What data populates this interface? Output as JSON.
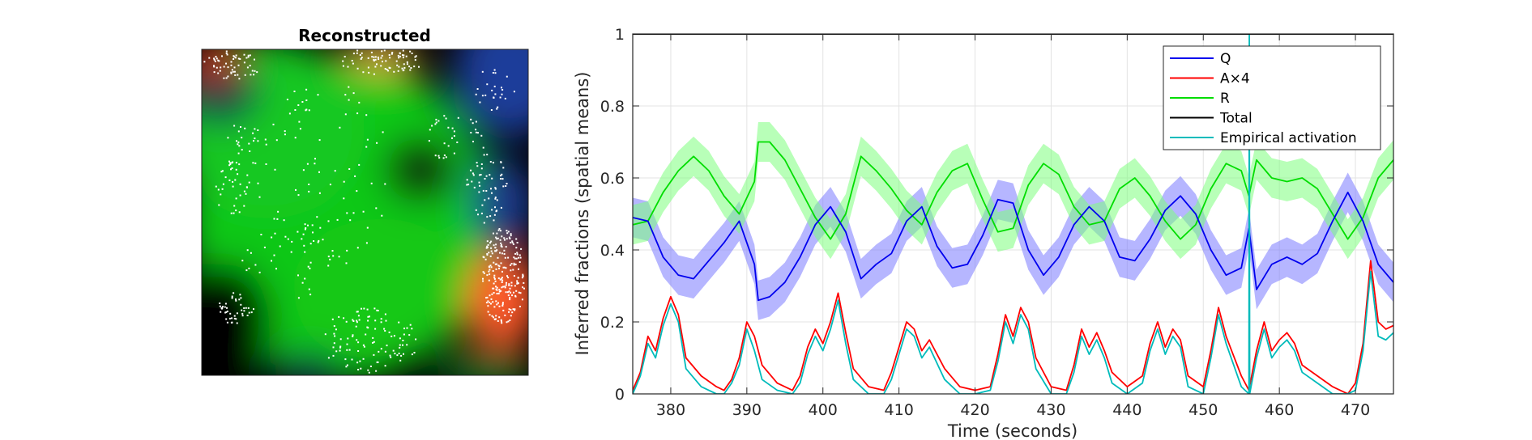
{
  "chart_data": [
    {
      "type": "heatmap",
      "title": "Reconstructed",
      "description_colors": {
        "Q": "#1e3cff",
        "A": "#ff3020",
        "R": "#00e020"
      },
      "spike_color": "#ffffff",
      "background": "#000000"
    },
    {
      "type": "line",
      "title": "",
      "xlabel": "Time (seconds)",
      "ylabel": "Inferred fractions (spatial means)",
      "xlim": [
        375,
        475
      ],
      "ylim": [
        0,
        1
      ],
      "xticks": [
        380,
        390,
        400,
        410,
        420,
        430,
        440,
        450,
        460,
        470
      ],
      "yticks": [
        0,
        0.2,
        0.4,
        0.6,
        0.8,
        1
      ],
      "grid": true,
      "legend_position": "top-right",
      "series": [
        {
          "name": "Q",
          "color": "#0000ee",
          "band_color": "#7a7aff",
          "x": [
            375,
            377,
            379,
            381,
            383,
            385,
            387,
            389,
            391,
            391.5,
            393,
            395,
            397,
            399,
            401,
            403,
            405,
            407,
            409,
            411,
            413,
            415,
            417,
            419,
            421,
            423,
            425,
            427,
            429,
            431,
            433,
            435,
            437,
            439,
            441,
            443,
            445,
            447,
            449,
            451,
            453,
            455,
            456,
            457,
            459,
            461,
            463,
            465,
            467,
            469,
            471,
            473,
            475
          ],
          "values": [
            0.49,
            0.48,
            0.38,
            0.33,
            0.32,
            0.37,
            0.42,
            0.48,
            0.36,
            0.26,
            0.27,
            0.31,
            0.38,
            0.47,
            0.52,
            0.45,
            0.32,
            0.36,
            0.39,
            0.48,
            0.52,
            0.41,
            0.35,
            0.36,
            0.44,
            0.54,
            0.53,
            0.4,
            0.33,
            0.38,
            0.47,
            0.52,
            0.48,
            0.38,
            0.37,
            0.43,
            0.51,
            0.55,
            0.5,
            0.4,
            0.33,
            0.35,
            0.46,
            0.29,
            0.36,
            0.38,
            0.36,
            0.39,
            0.48,
            0.56,
            0.48,
            0.36,
            0.31
          ]
        },
        {
          "name": "A×4",
          "color": "#ff0000",
          "x": [
            375,
            376,
            377,
            378,
            379,
            380,
            381,
            382,
            384,
            386,
            387,
            388,
            389,
            390,
            391,
            392,
            394,
            396,
            397,
            398,
            399,
            400,
            401,
            402,
            403,
            404,
            406,
            408,
            409,
            410,
            411,
            412,
            413,
            414,
            416,
            418,
            420,
            422,
            423,
            424,
            425,
            426,
            427,
            428,
            430,
            432,
            433,
            434,
            435,
            436,
            437,
            438,
            440,
            442,
            443,
            444,
            445,
            446,
            447,
            448,
            450,
            451,
            452,
            453,
            455,
            456,
            457,
            458,
            459,
            460,
            461,
            462,
            463,
            465,
            467,
            468,
            469,
            470,
            471,
            472,
            473,
            474,
            475
          ],
          "values": [
            0.01,
            0.06,
            0.16,
            0.12,
            0.21,
            0.27,
            0.22,
            0.1,
            0.05,
            0.02,
            0.01,
            0.04,
            0.1,
            0.2,
            0.16,
            0.08,
            0.03,
            0.01,
            0.05,
            0.13,
            0.18,
            0.14,
            0.2,
            0.28,
            0.17,
            0.07,
            0.02,
            0.01,
            0.06,
            0.13,
            0.2,
            0.18,
            0.12,
            0.15,
            0.07,
            0.02,
            0.01,
            0.02,
            0.11,
            0.22,
            0.16,
            0.24,
            0.2,
            0.1,
            0.02,
            0.01,
            0.08,
            0.18,
            0.13,
            0.17,
            0.12,
            0.06,
            0.02,
            0.05,
            0.14,
            0.2,
            0.13,
            0.18,
            0.15,
            0.05,
            0.02,
            0.12,
            0.24,
            0.16,
            0.05,
            0.01,
            0.12,
            0.2,
            0.12,
            0.15,
            0.17,
            0.14,
            0.08,
            0.05,
            0.02,
            0.01,
            0.0,
            0.03,
            0.14,
            0.37,
            0.2,
            0.18,
            0.19
          ]
        },
        {
          "name": "R",
          "color": "#00dd00",
          "band_color": "#7dff7d",
          "x": [
            375,
            377,
            379,
            381,
            383,
            385,
            387,
            389,
            391,
            391.5,
            393,
            395,
            397,
            399,
            401,
            403,
            405,
            407,
            409,
            411,
            413,
            415,
            417,
            419,
            421,
            423,
            425,
            427,
            429,
            431,
            433,
            435,
            437,
            439,
            441,
            443,
            445,
            447,
            449,
            451,
            453,
            455,
            456,
            457,
            459,
            461,
            463,
            465,
            467,
            469,
            471,
            473,
            475
          ],
          "values": [
            0.47,
            0.48,
            0.56,
            0.62,
            0.66,
            0.62,
            0.55,
            0.5,
            0.59,
            0.7,
            0.7,
            0.65,
            0.57,
            0.49,
            0.43,
            0.5,
            0.66,
            0.62,
            0.57,
            0.51,
            0.47,
            0.56,
            0.62,
            0.64,
            0.54,
            0.45,
            0.46,
            0.58,
            0.64,
            0.61,
            0.52,
            0.47,
            0.48,
            0.57,
            0.6,
            0.55,
            0.48,
            0.43,
            0.47,
            0.57,
            0.64,
            0.62,
            0.55,
            0.65,
            0.6,
            0.59,
            0.6,
            0.57,
            0.5,
            0.43,
            0.49,
            0.6,
            0.65
          ]
        },
        {
          "name": "Total",
          "color": "#000000",
          "x": [
            375,
            475
          ],
          "values": [
            1,
            1
          ]
        },
        {
          "name": "Empirical activation",
          "color": "#00bbbb",
          "x": [
            375,
            376,
            377,
            378,
            379,
            380,
            381,
            382,
            384,
            386,
            387,
            388,
            389,
            390,
            391,
            392,
            394,
            396,
            397,
            398,
            399,
            400,
            401,
            402,
            403,
            404,
            406,
            408,
            409,
            410,
            411,
            412,
            413,
            414,
            416,
            418,
            420,
            422,
            423,
            424,
            425,
            426,
            427,
            428,
            430,
            432,
            433,
            434,
            435,
            436,
            437,
            438,
            440,
            442,
            443,
            444,
            445,
            446,
            447,
            448,
            450,
            451,
            452,
            453,
            455,
            456,
            456.05,
            456.1,
            457,
            458,
            459,
            460,
            461,
            462,
            463,
            465,
            467,
            468,
            469,
            470,
            471,
            472,
            473,
            474,
            475
          ],
          "values": [
            0.0,
            0.05,
            0.14,
            0.1,
            0.19,
            0.25,
            0.2,
            0.07,
            0.02,
            0.0,
            0.0,
            0.03,
            0.08,
            0.18,
            0.12,
            0.04,
            0.01,
            0.0,
            0.03,
            0.11,
            0.16,
            0.12,
            0.18,
            0.26,
            0.14,
            0.04,
            0.0,
            0.0,
            0.04,
            0.11,
            0.18,
            0.16,
            0.1,
            0.13,
            0.04,
            0.0,
            0.0,
            0.01,
            0.09,
            0.2,
            0.14,
            0.22,
            0.18,
            0.07,
            0.0,
            0.0,
            0.06,
            0.16,
            0.11,
            0.15,
            0.1,
            0.03,
            0.0,
            0.03,
            0.12,
            0.18,
            0.11,
            0.16,
            0.13,
            0.02,
            0.0,
            0.1,
            0.22,
            0.14,
            0.02,
            0.0,
            1.0,
            0.0,
            0.1,
            0.18,
            0.1,
            0.13,
            0.15,
            0.12,
            0.06,
            0.03,
            0.0,
            0.0,
            0.0,
            0.01,
            0.12,
            0.34,
            0.16,
            0.15,
            0.17
          ]
        }
      ]
    }
  ]
}
